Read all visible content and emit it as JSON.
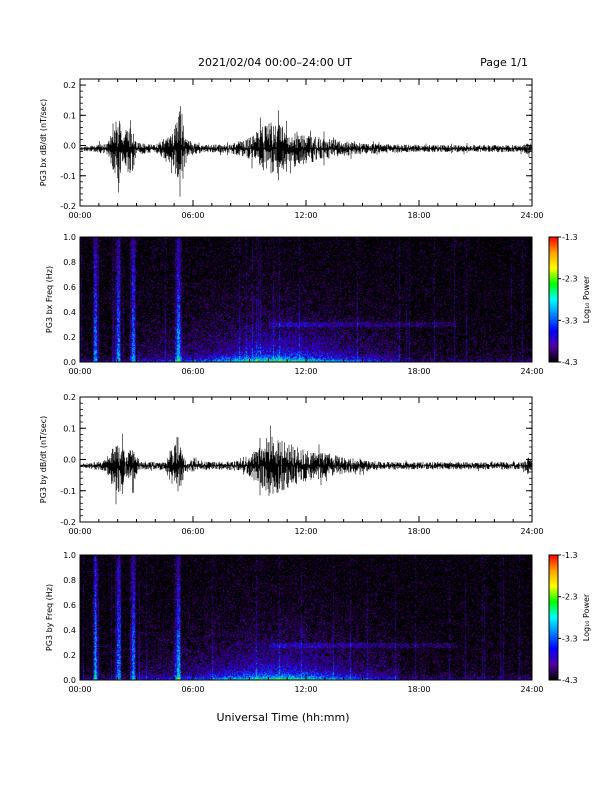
{
  "header": {
    "title": "2021/02/04  00:00–24:00 UT",
    "page_label": "Page 1/1"
  },
  "colorbar": {
    "label": "Log₁₀ Power",
    "ticks": [
      "-1.3",
      "-2.3",
      "-3.3",
      "-4.3"
    ],
    "colors": [
      "#ff0000",
      "#ffa000",
      "#ffff00",
      "#00ff00",
      "#00ffff",
      "#0080ff",
      "#0000ff",
      "#5000a0",
      "#000000"
    ]
  },
  "chart_data": [
    {
      "type": "line",
      "ylabel": "PG3 bx dB/dt (nT/sec)",
      "xlim": [
        "00:00",
        "24:00"
      ],
      "ylim": [
        -0.2,
        0.22
      ],
      "x_ticks": [
        "00:00",
        "06:00",
        "12:00",
        "18:00",
        "24:00"
      ],
      "y_ticks": [
        "0.2",
        "0.1",
        "0.0",
        "-0.1",
        "-0.2"
      ],
      "y_tick_values": [
        0.2,
        0.1,
        0.0,
        -0.1,
        -0.2
      ],
      "baseline": -0.01,
      "activity": [
        [
          0,
          0.006
        ],
        [
          1.5,
          0.02
        ],
        [
          2.0,
          0.15
        ],
        [
          2.3,
          0.05
        ],
        [
          2.7,
          0.11
        ],
        [
          3.0,
          0.02
        ],
        [
          4.0,
          0.012
        ],
        [
          5.0,
          0.06
        ],
        [
          5.3,
          0.17
        ],
        [
          5.7,
          0.03
        ],
        [
          6.5,
          0.012
        ],
        [
          8.0,
          0.015
        ],
        [
          9.0,
          0.035
        ],
        [
          10.0,
          0.09
        ],
        [
          11.0,
          0.07
        ],
        [
          12.0,
          0.05
        ],
        [
          13.0,
          0.035
        ],
        [
          14.0,
          0.025
        ],
        [
          15.0,
          0.018
        ],
        [
          18.0,
          0.012
        ],
        [
          23.5,
          0.012
        ],
        [
          23.8,
          0.02
        ],
        [
          24.0,
          0.01
        ]
      ]
    },
    {
      "type": "heatmap",
      "ylabel": "PG3 bx Freq (Hz)",
      "xlim": [
        "00:00",
        "24:00"
      ],
      "ylim": [
        0.0,
        1.0
      ],
      "x_ticks": [
        "00:00",
        "06:00",
        "12:00",
        "18:00",
        "24:00"
      ],
      "y_ticks": [
        "1.0",
        "0.8",
        "0.6",
        "0.4",
        "0.2",
        "0.0"
      ],
      "y_tick_values": [
        1.0,
        0.8,
        0.6,
        0.4,
        0.2,
        0.0
      ],
      "color_range": [
        -4.3,
        -1.3
      ],
      "bursts_hours": [
        0.8,
        2.0,
        2.8,
        5.2
      ],
      "band_freq_hz": [
        0.28,
        0.32
      ]
    },
    {
      "type": "line",
      "ylabel": "PG3 by dB/dt (nT/sec)",
      "xlim": [
        "00:00",
        "24:00"
      ],
      "ylim": [
        -0.2,
        0.2
      ],
      "x_ticks": [
        "00:00",
        "06:00",
        "12:00",
        "18:00",
        "24:00"
      ],
      "y_ticks": [
        "0.2",
        "0.1",
        "0.0",
        "-0.1",
        "-0.2"
      ],
      "y_tick_values": [
        0.2,
        0.1,
        0.0,
        -0.1,
        -0.2
      ],
      "baseline": -0.02,
      "activity": [
        [
          0,
          0.006
        ],
        [
          1.5,
          0.02
        ],
        [
          2.0,
          0.1
        ],
        [
          2.5,
          0.04
        ],
        [
          2.8,
          0.06
        ],
        [
          3.2,
          0.012
        ],
        [
          4.5,
          0.015
        ],
        [
          5.2,
          0.1
        ],
        [
          5.6,
          0.02
        ],
        [
          7.0,
          0.012
        ],
        [
          8.5,
          0.015
        ],
        [
          9.5,
          0.06
        ],
        [
          10.0,
          0.1
        ],
        [
          11.0,
          0.075
        ],
        [
          12.0,
          0.05
        ],
        [
          13.0,
          0.04
        ],
        [
          14.0,
          0.028
        ],
        [
          15.0,
          0.02
        ],
        [
          16.0,
          0.012
        ],
        [
          23.5,
          0.012
        ],
        [
          23.8,
          0.03
        ],
        [
          24.0,
          0.01
        ]
      ]
    },
    {
      "type": "heatmap",
      "ylabel": "PG3 by Freq (Hz)",
      "xlim": [
        "00:00",
        "24:00"
      ],
      "ylim": [
        0.0,
        1.0
      ],
      "x_ticks": [
        "00:00",
        "06:00",
        "12:00",
        "18:00",
        "24:00"
      ],
      "y_ticks": [
        "1.0",
        "0.8",
        "0.6",
        "0.4",
        "0.2",
        "0.0"
      ],
      "y_tick_values": [
        1.0,
        0.8,
        0.6,
        0.4,
        0.2,
        0.0
      ],
      "color_range": [
        -4.3,
        -1.3
      ],
      "bursts_hours": [
        0.8,
        2.0,
        2.8,
        5.2
      ],
      "band_freq_hz": [
        0.26,
        0.3
      ]
    }
  ],
  "xlabel": "Universal Time (hh:mm)"
}
